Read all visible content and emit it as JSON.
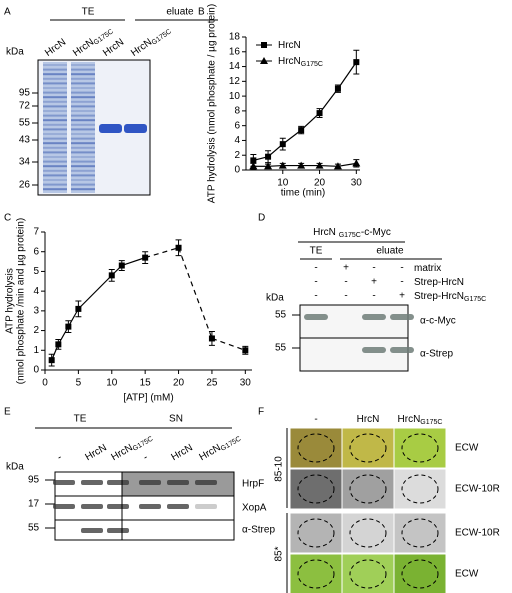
{
  "panel_labels": [
    "A",
    "B",
    "C",
    "D",
    "E",
    "F"
  ],
  "panel_a": {
    "groups": [
      "TE",
      "eluate"
    ],
    "lanes": [
      {
        "name": "HrcN"
      },
      {
        "name": "HrcN",
        "sub": "G175C"
      },
      {
        "name": "HrcN"
      },
      {
        "name": "HrcN",
        "sub": "G175C"
      }
    ],
    "unit": "kDa",
    "markers": [
      95,
      72,
      55,
      43,
      34,
      26
    ]
  },
  "chart_data": [
    {
      "type": "line",
      "x_label": "time (min)",
      "y_label": [
        "ATP hydrolysis (nmol phosphate / µg protein)"
      ],
      "x": [
        2,
        6,
        10,
        15,
        20,
        25,
        30
      ],
      "series": [
        {
          "name": "HrcN",
          "marker": "square",
          "color": "#000000",
          "values": [
            1.3,
            1.8,
            3.5,
            5.4,
            7.7,
            11,
            14.6
          ],
          "errors": [
            0.8,
            0.8,
            0.8,
            0.5,
            0.6,
            0.5,
            1.6
          ]
        },
        {
          "name": "HrcN",
          "sub": "G175C",
          "marker": "triangle",
          "color": "#000000",
          "values": [
            0.5,
            0.5,
            0.6,
            0.6,
            0.6,
            0.5,
            0.9
          ],
          "errors": [
            0.4,
            0.3,
            0.3,
            0.3,
            0.3,
            0.3,
            0.5
          ]
        }
      ],
      "xlim": [
        0,
        31
      ],
      "ylim": [
        0,
        18
      ],
      "xticks": [
        10,
        20,
        30
      ],
      "yticks": [
        0,
        2,
        4,
        6,
        8,
        10,
        12,
        14,
        16,
        18
      ],
      "legend": "upper left"
    },
    {
      "type": "line",
      "x_label": "[ATP] (mM)",
      "y_label": [
        "ATP hydrolysis",
        "(nmol phosphate /min and µg protein)"
      ],
      "x": [
        1,
        2,
        3.5,
        5,
        10,
        11.5,
        15,
        20,
        25,
        30
      ],
      "series": [
        {
          "marker": "square",
          "color": "#000000",
          "values": [
            0.5,
            1.3,
            2.2,
            3.1,
            4.8,
            5.3,
            5.7,
            6.2,
            1.6,
            1.0
          ],
          "errors": [
            0.3,
            0.25,
            0.3,
            0.4,
            0.3,
            0.25,
            0.3,
            0.4,
            0.35,
            0.2
          ]
        }
      ],
      "xlim": [
        0,
        31
      ],
      "ylim": [
        0,
        7
      ],
      "xticks": [
        0,
        5,
        10,
        15,
        20,
        25,
        30
      ],
      "yticks": [
        0,
        1,
        2,
        3,
        4,
        5,
        6,
        7
      ],
      "dashed_from_x": 15
    }
  ],
  "panel_d": {
    "title": {
      "name": "HrcN ",
      "sub": "G175C",
      "after": "-c-Myc"
    },
    "groups": [
      "TE",
      "eluate"
    ],
    "rows": [
      {
        "label": {
          "name": "matrix"
        },
        "signs": [
          "-",
          "+",
          "-",
          "-"
        ]
      },
      {
        "label": {
          "name": "Strep-HrcN"
        },
        "signs": [
          "-",
          "-",
          "+",
          "-"
        ]
      },
      {
        "label": {
          "name": "Strep-HrcN",
          "sub": "G175C"
        },
        "signs": [
          "-",
          "-",
          "-",
          "+"
        ]
      }
    ],
    "unit": "kDa",
    "blots": [
      {
        "kda": 55,
        "label": "α-c-Myc"
      },
      {
        "kda": 55,
        "label": "α-Strep"
      }
    ]
  },
  "panel_e": {
    "groups": [
      "TE",
      "SN"
    ],
    "lanes": [
      {
        "name": "-"
      },
      {
        "name": "HrcN"
      },
      {
        "name": "HrcN",
        "sub": "G175C"
      },
      {
        "name": "-"
      },
      {
        "name": "HrcN"
      },
      {
        "name": "HrcN",
        "sub": "G175C"
      }
    ],
    "unit": "kDa",
    "blots": [
      {
        "kda": 95,
        "label": "HrpF"
      },
      {
        "kda": 17,
        "label": "XopA"
      },
      {
        "kda": 55,
        "label": "α-Strep"
      }
    ]
  },
  "panel_f": {
    "columns": [
      {
        "name": "-"
      },
      {
        "name": "HrcN"
      },
      {
        "name": "HrcN",
        "sub": "G175C"
      }
    ],
    "strains": [
      "85-10",
      "85*"
    ],
    "rows": [
      "ECW",
      "ECW-10R",
      "ECW-10R",
      "ECW"
    ]
  }
}
